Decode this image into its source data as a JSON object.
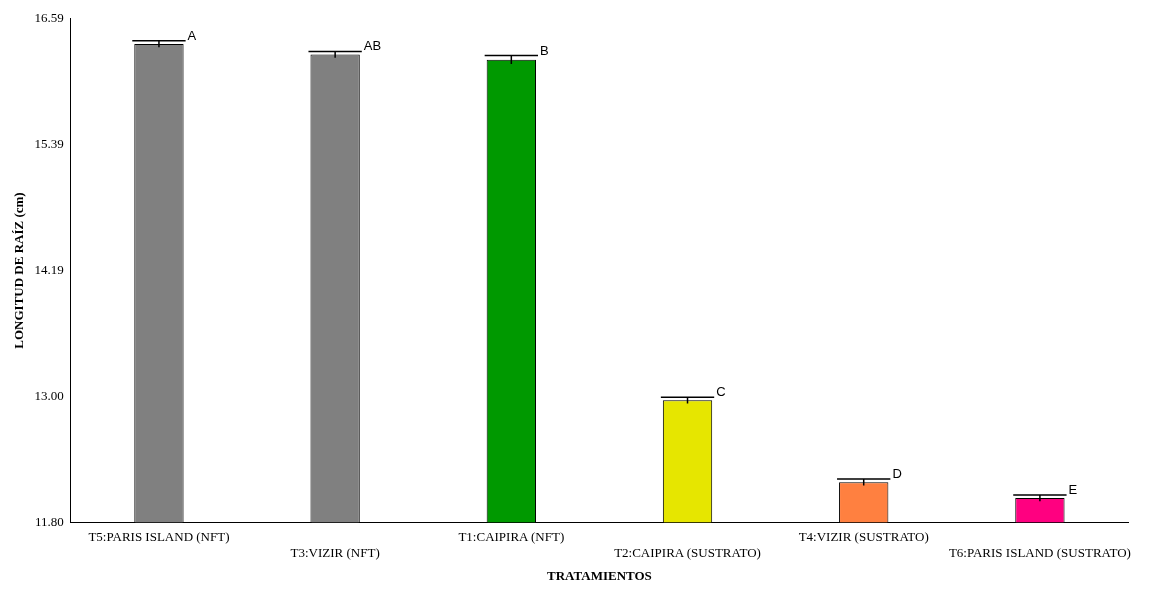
{
  "chart_data": {
    "type": "bar",
    "xlabel": "TRATAMIENTOS",
    "ylabel": "LONGITUD DE RAÍZ (cm)",
    "categories": [
      "T5:PARIS ISLAND (NFT)",
      "T3:VIZIR (NFT)",
      "T1:CAIPIRA (NFT)",
      "T2:CAIPIRA (SUSTRATO)",
      "T4:VIZIR (SUSTRATO)",
      "T6:PARIS ISLAND (SUSTRATO)"
    ],
    "values": [
      16.35,
      16.25,
      16.2,
      12.96,
      12.18,
      12.03
    ],
    "errors": [
      0.03,
      0.03,
      0.04,
      0.03,
      0.03,
      0.03
    ],
    "colors": [
      "#808080",
      "#808080",
      "#009900",
      "#e6e600",
      "#ff8040",
      "#ff0080"
    ],
    "ylim": [
      11.8,
      16.59
    ],
    "yticks": [
      {
        "value": 11.8,
        "label": "11.80"
      },
      {
        "value": 13.0,
        "label": "13.00"
      },
      {
        "value": 14.19,
        "label": "14.19"
      },
      {
        "value": 15.39,
        "label": "15.39"
      },
      {
        "value": 16.59,
        "label": "16.59"
      }
    ],
    "annotations": [
      {
        "text": "A",
        "x": "T5:PARIS ISLAND (NFT)",
        "y": 16.38
      },
      {
        "text": "AB",
        "x": "T3:VIZIR (NFT)",
        "y": 16.28
      },
      {
        "text": "B",
        "x": "T1:CAIPIRA (NFT)",
        "y": 16.24
      },
      {
        "text": "C",
        "x": "T2:CAIPIRA (SUSTRATO)",
        "y": 12.99
      },
      {
        "text": "D",
        "x": "T4:VIZIR (SUSTRATO)",
        "y": 12.21
      },
      {
        "text": "E",
        "x": "T6:PARIS ISLAND (SUSTRATO)",
        "y": 12.06
      }
    ],
    "grid": false,
    "legend": false
  }
}
